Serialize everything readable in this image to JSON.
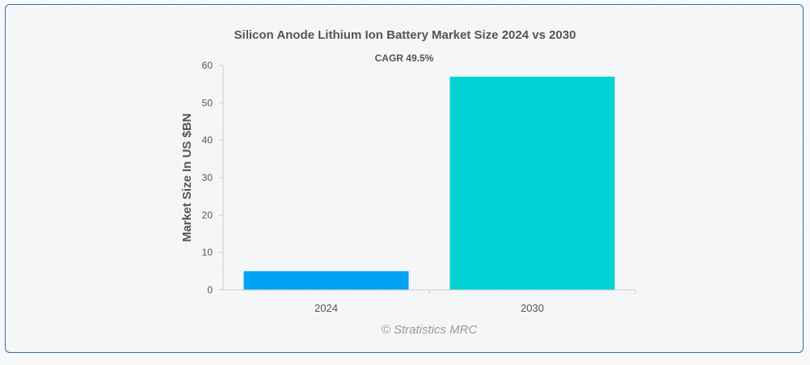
{
  "chart_data": {
    "type": "bar",
    "title": "Silicon Anode Lithium Ion Battery Market Size 2024 vs 2030",
    "annotation": "CAGR 49.5%",
    "xlabel": "",
    "ylabel": "Market Size In US $BN",
    "categories": [
      "2024",
      "2030"
    ],
    "values": [
      5.0,
      57.0
    ],
    "bar_colors": [
      "#00a2f2",
      "#00d2d4"
    ],
    "ylim": [
      0,
      60
    ],
    "yticks": [
      0,
      10,
      20,
      30,
      40,
      50,
      60
    ],
    "ytick_labels": [
      "0",
      "10",
      "20",
      "30",
      "40",
      "50",
      "60"
    ],
    "grid": false,
    "legend": "none"
  },
  "watermark": "© Stratistics MRC",
  "colors": {
    "frame_border": "#2e6db4",
    "title_text": "#555555",
    "axis_text": "#555555",
    "axis_line": "#cccccc",
    "watermark_text": "#9a9a9a"
  }
}
